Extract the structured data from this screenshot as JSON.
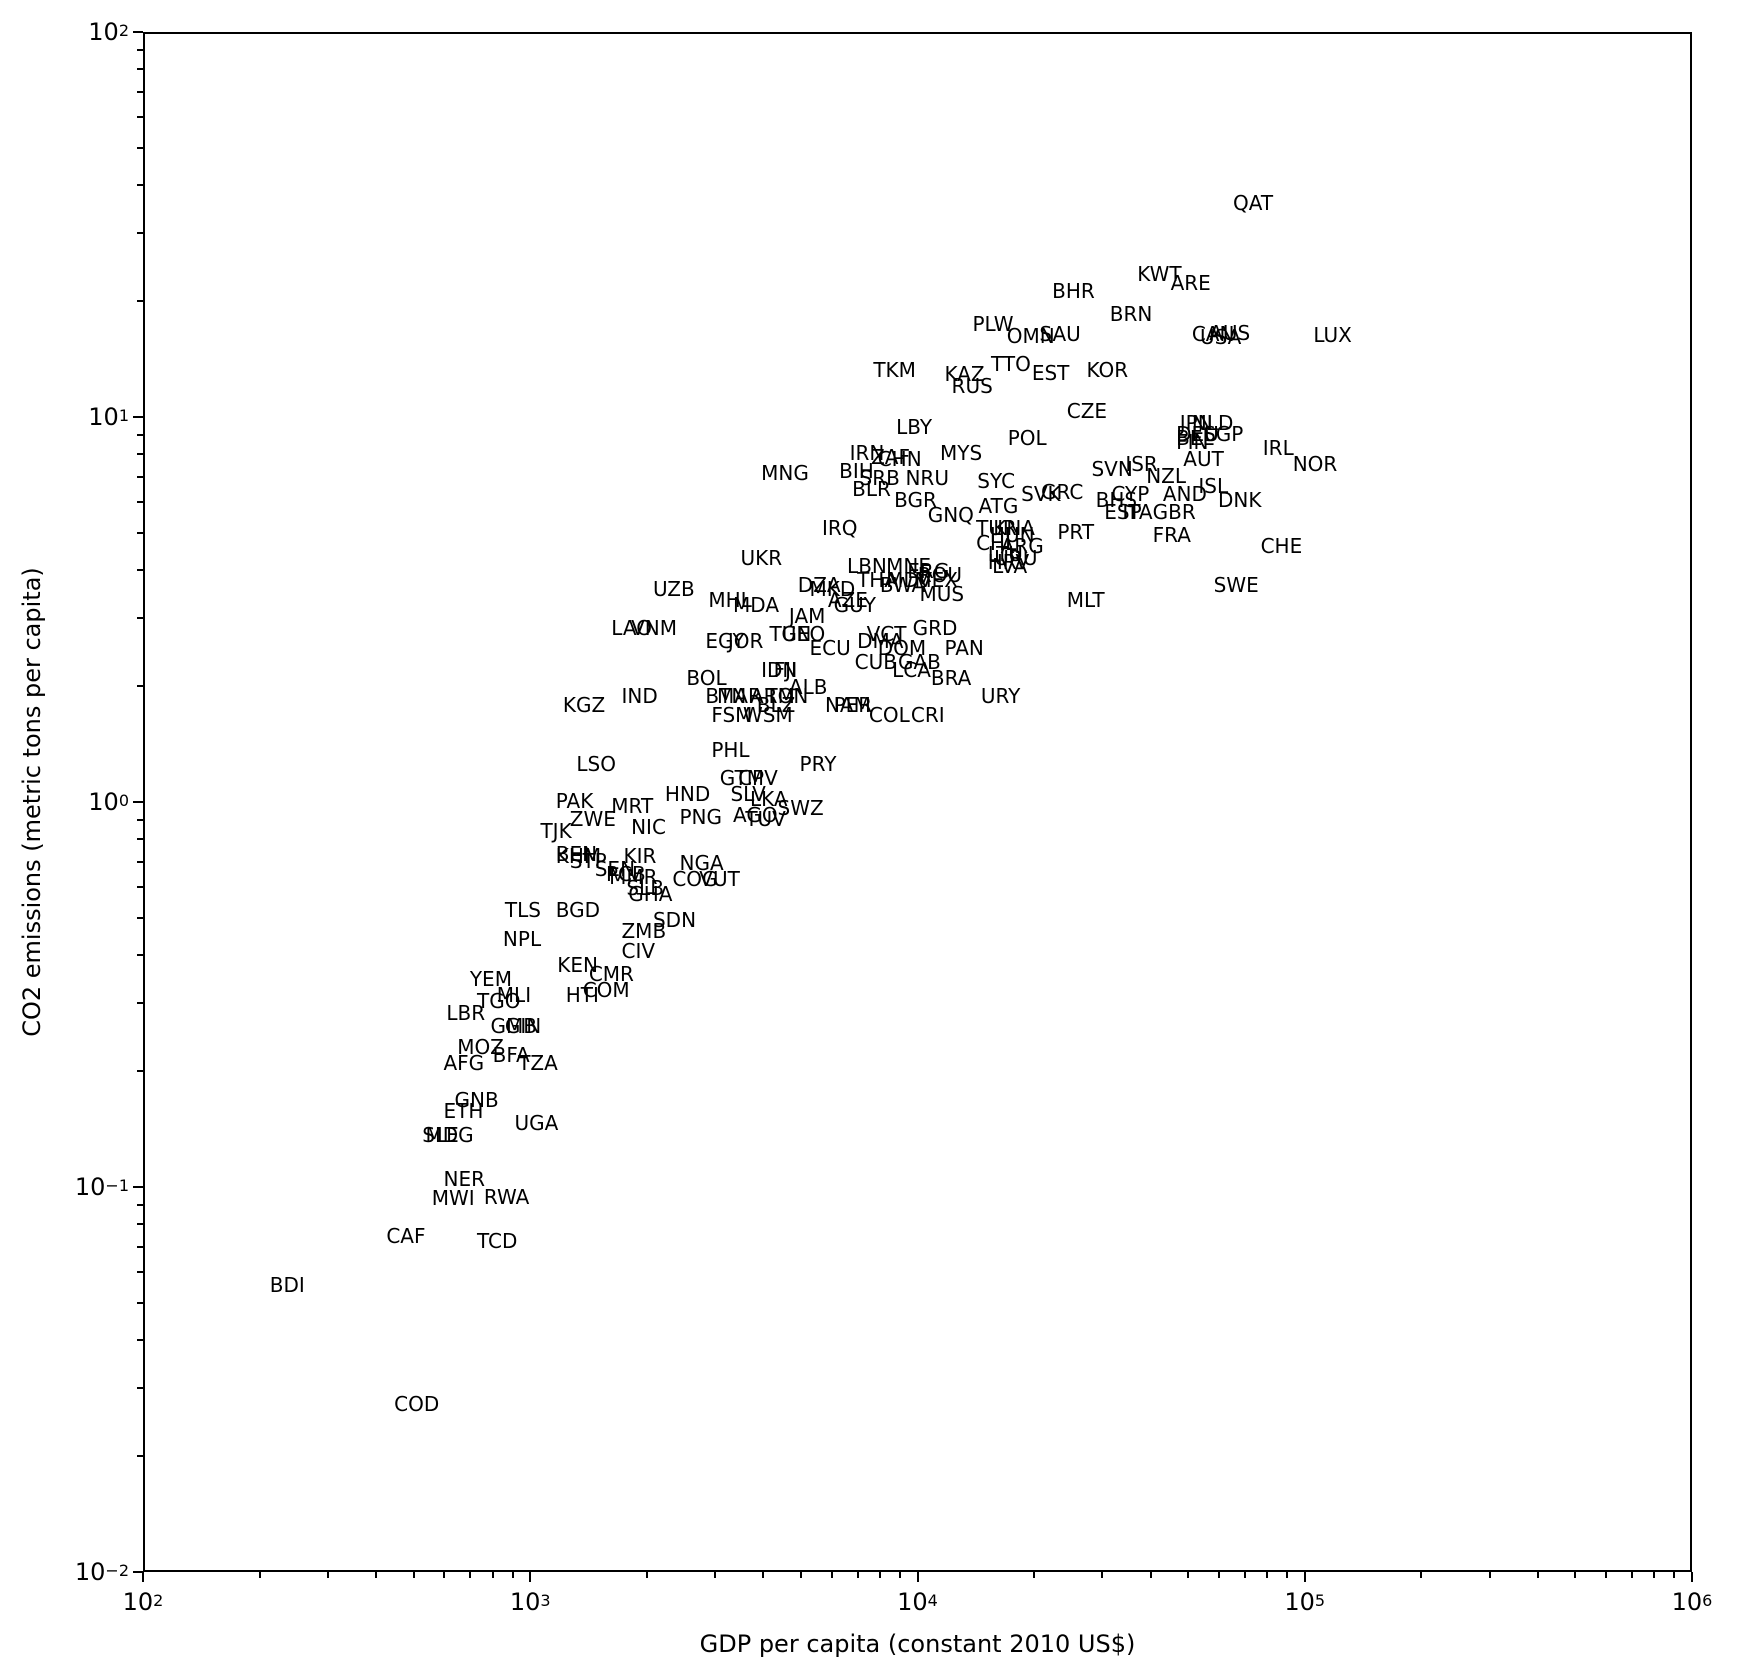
{
  "chart_data": {
    "type": "scatter",
    "title": "",
    "xlabel": "GDP per capita (constant 2010 US$)",
    "ylabel": "CO2 emissions (metric tons per capita)",
    "xscale": "log",
    "yscale": "log",
    "xlim": [
      100,
      1000000
    ],
    "ylim": [
      0.01,
      100
    ],
    "x_ticks": [
      {
        "base": "10",
        "exp": "2"
      },
      {
        "base": "10",
        "exp": "3"
      },
      {
        "base": "10",
        "exp": "4"
      },
      {
        "base": "10",
        "exp": "5"
      },
      {
        "base": "10",
        "exp": "6"
      }
    ],
    "y_ticks": [
      {
        "base": "10",
        "exp": "−2"
      },
      {
        "base": "10",
        "exp": "−1"
      },
      {
        "base": "10",
        "exp": "0"
      },
      {
        "base": "10",
        "exp": "1"
      },
      {
        "base": "10",
        "exp": "2"
      }
    ],
    "grid": false,
    "legend": null,
    "marker": "text labels (ISO3 country codes)",
    "points": [
      {
        "label": "QAT",
        "x": 64500,
        "y": 34.2
      },
      {
        "label": "KWT",
        "x": 36500,
        "y": 22.4
      },
      {
        "label": "ARE",
        "x": 44500,
        "y": 21.2
      },
      {
        "label": "BHR",
        "x": 22000,
        "y": 20.3
      },
      {
        "label": "BRN",
        "x": 31000,
        "y": 17.7
      },
      {
        "label": "PLW",
        "x": 13700,
        "y": 16.6
      },
      {
        "label": "OMN",
        "x": 16800,
        "y": 15.5
      },
      {
        "label": "SAU",
        "x": 20400,
        "y": 15.7
      },
      {
        "label": "CAN",
        "x": 50500,
        "y": 15.7
      },
      {
        "label": "AUS",
        "x": 56000,
        "y": 15.8
      },
      {
        "label": "USA",
        "x": 53000,
        "y": 15.4
      },
      {
        "label": "LUX",
        "x": 104000,
        "y": 15.6
      },
      {
        "label": "TKM",
        "x": 7600,
        "y": 12.6
      },
      {
        "label": "KAZ",
        "x": 11600,
        "y": 12.3
      },
      {
        "label": "RUS",
        "x": 12100,
        "y": 11.5
      },
      {
        "label": "TTO",
        "x": 15300,
        "y": 13.1
      },
      {
        "label": "EST",
        "x": 19500,
        "y": 12.4
      },
      {
        "label": "KOR",
        "x": 27000,
        "y": 12.6
      },
      {
        "label": "CZE",
        "x": 24000,
        "y": 9.9
      },
      {
        "label": "LBY",
        "x": 8700,
        "y": 9.0
      },
      {
        "label": "POL",
        "x": 16900,
        "y": 8.4
      },
      {
        "label": "IRN",
        "x": 6600,
        "y": 7.7
      },
      {
        "label": "ZAF",
        "x": 7500,
        "y": 7.5
      },
      {
        "label": "CHN",
        "x": 7800,
        "y": 7.4
      },
      {
        "label": "MYS",
        "x": 11300,
        "y": 7.7
      },
      {
        "label": "MNG",
        "x": 3900,
        "y": 6.8
      },
      {
        "label": "BIH",
        "x": 6200,
        "y": 6.9
      },
      {
        "label": "SRB",
        "x": 7000,
        "y": 6.6
      },
      {
        "label": "BLR",
        "x": 6700,
        "y": 6.2
      },
      {
        "label": "NRU",
        "x": 9200,
        "y": 6.6
      },
      {
        "label": "BGR",
        "x": 8600,
        "y": 5.8
      },
      {
        "label": "SYC",
        "x": 14100,
        "y": 6.5
      },
      {
        "label": "SVK",
        "x": 18300,
        "y": 6.0
      },
      {
        "label": "GRC",
        "x": 20600,
        "y": 6.1
      },
      {
        "label": "SVN",
        "x": 27800,
        "y": 7.0
      },
      {
        "label": "ISR",
        "x": 34000,
        "y": 7.2
      },
      {
        "label": "NZL",
        "x": 38500,
        "y": 6.7
      },
      {
        "label": "CYP",
        "x": 31300,
        "y": 6.0
      },
      {
        "label": "BHS",
        "x": 28500,
        "y": 5.8
      },
      {
        "label": "ESP",
        "x": 30000,
        "y": 5.4
      },
      {
        "label": "ITA",
        "x": 33400,
        "y": 5.4
      },
      {
        "label": "GBR",
        "x": 40000,
        "y": 5.4
      },
      {
        "label": "JPN",
        "x": 47000,
        "y": 9.2
      },
      {
        "label": "NLD",
        "x": 50500,
        "y": 9.2
      },
      {
        "label": "DEU",
        "x": 46000,
        "y": 8.6
      },
      {
        "label": "BEL",
        "x": 46000,
        "y": 8.4
      },
      {
        "label": "FIN",
        "x": 46000,
        "y": 8.2
      },
      {
        "label": "SGP",
        "x": 54000,
        "y": 8.6
      },
      {
        "label": "IRL",
        "x": 77000,
        "y": 7.9
      },
      {
        "label": "AUT",
        "x": 48000,
        "y": 7.4
      },
      {
        "label": "NOR",
        "x": 92000,
        "y": 7.2
      },
      {
        "label": "ISL",
        "x": 52500,
        "y": 6.3
      },
      {
        "label": "AND",
        "x": 42500,
        "y": 6.0
      },
      {
        "label": "DNK",
        "x": 59000,
        "y": 5.8
      },
      {
        "label": "FRA",
        "x": 40000,
        "y": 4.7
      },
      {
        "label": "CHE",
        "x": 76000,
        "y": 4.4
      },
      {
        "label": "SWE",
        "x": 57500,
        "y": 3.5
      },
      {
        "label": "MLT",
        "x": 24000,
        "y": 3.2
      },
      {
        "label": "PRT",
        "x": 22700,
        "y": 4.8
      },
      {
        "label": "ATG",
        "x": 14200,
        "y": 5.6
      },
      {
        "label": "TUR",
        "x": 14000,
        "y": 4.9
      },
      {
        "label": "KNA",
        "x": 15500,
        "y": 4.9
      },
      {
        "label": "HUN",
        "x": 15200,
        "y": 4.7
      },
      {
        "label": "CHL",
        "x": 14000,
        "y": 4.5
      },
      {
        "label": "ARG",
        "x": 16200,
        "y": 4.4
      },
      {
        "label": "LTU",
        "x": 15000,
        "y": 4.2
      },
      {
        "label": "HRV",
        "x": 15000,
        "y": 4.0
      },
      {
        "label": "URU",
        "x": 15600,
        "y": 4.1
      },
      {
        "label": "LVA",
        "x": 15400,
        "y": 3.9
      },
      {
        "label": "GNQ",
        "x": 10500,
        "y": 5.3
      },
      {
        "label": "IRQ",
        "x": 5600,
        "y": 4.9
      },
      {
        "label": "UKR",
        "x": 3450,
        "y": 4.1
      },
      {
        "label": "UZB",
        "x": 2050,
        "y": 3.4
      },
      {
        "label": "MHL",
        "x": 2850,
        "y": 3.2
      },
      {
        "label": "MDA",
        "x": 3300,
        "y": 3.1
      },
      {
        "label": "LBN",
        "x": 6500,
        "y": 3.9
      },
      {
        "label": "MNE",
        "x": 8200,
        "y": 3.9
      },
      {
        "label": "ERG",
        "x": 9300,
        "y": 3.8
      },
      {
        "label": "ROU",
        "x": 9900,
        "y": 3.7
      },
      {
        "label": "MEX",
        "x": 9700,
        "y": 3.6
      },
      {
        "label": "THA",
        "x": 6900,
        "y": 3.6
      },
      {
        "label": "MDV",
        "x": 8200,
        "y": 3.6
      },
      {
        "label": "BWA",
        "x": 7900,
        "y": 3.5
      },
      {
        "label": "DZA",
        "x": 4850,
        "y": 3.5
      },
      {
        "label": "MKD",
        "x": 5200,
        "y": 3.4
      },
      {
        "label": "AZE",
        "x": 5800,
        "y": 3.2
      },
      {
        "label": "GUY",
        "x": 6000,
        "y": 3.1
      },
      {
        "label": "MUS",
        "x": 10000,
        "y": 3.3
      },
      {
        "label": "JAM",
        "x": 4600,
        "y": 2.9
      },
      {
        "label": "LAO",
        "x": 1600,
        "y": 2.7
      },
      {
        "label": "VNM",
        "x": 1800,
        "y": 2.7
      },
      {
        "label": "EGY",
        "x": 2800,
        "y": 2.5
      },
      {
        "label": "JOR",
        "x": 3200,
        "y": 2.5
      },
      {
        "label": "TUN",
        "x": 4100,
        "y": 2.6
      },
      {
        "label": "GEO",
        "x": 4400,
        "y": 2.6
      },
      {
        "label": "ECU",
        "x": 5200,
        "y": 2.4
      },
      {
        "label": "DMA",
        "x": 6900,
        "y": 2.5
      },
      {
        "label": "VCT",
        "x": 7300,
        "y": 2.6
      },
      {
        "label": "DOM",
        "x": 7800,
        "y": 2.4
      },
      {
        "label": "GRD",
        "x": 9600,
        "y": 2.7
      },
      {
        "label": "PAN",
        "x": 11600,
        "y": 2.4
      },
      {
        "label": "CUB",
        "x": 6800,
        "y": 2.2
      },
      {
        "label": "GAB",
        "x": 8800,
        "y": 2.2
      },
      {
        "label": "LCA",
        "x": 8500,
        "y": 2.1
      },
      {
        "label": "BRA",
        "x": 10700,
        "y": 2.0
      },
      {
        "label": "URY",
        "x": 14400,
        "y": 1.8
      },
      {
        "label": "IDN",
        "x": 3900,
        "y": 2.1
      },
      {
        "label": "FJI",
        "x": 4200,
        "y": 2.1
      },
      {
        "label": "ALB",
        "x": 4600,
        "y": 1.9
      },
      {
        "label": "BOL",
        "x": 2500,
        "y": 2.0
      },
      {
        "label": "IND",
        "x": 1700,
        "y": 1.8
      },
      {
        "label": "KGZ",
        "x": 1200,
        "y": 1.7
      },
      {
        "label": "BTN",
        "x": 2800,
        "y": 1.8
      },
      {
        "label": "MAR",
        "x": 3000,
        "y": 1.8
      },
      {
        "label": "ARM",
        "x": 3650,
        "y": 1.8
      },
      {
        "label": "TON",
        "x": 4000,
        "y": 1.8
      },
      {
        "label": "BLZ",
        "x": 3800,
        "y": 1.7
      },
      {
        "label": "WSM",
        "x": 3500,
        "y": 1.6
      },
      {
        "label": "NAM",
        "x": 5700,
        "y": 1.7
      },
      {
        "label": "PER",
        "x": 6000,
        "y": 1.7
      },
      {
        "label": "COL",
        "x": 7400,
        "y": 1.6
      },
      {
        "label": "CRI",
        "x": 9500,
        "y": 1.6
      },
      {
        "label": "FSM",
        "x": 2900,
        "y": 1.6
      },
      {
        "label": "PHL",
        "x": 2900,
        "y": 1.3
      },
      {
        "label": "PRY",
        "x": 4900,
        "y": 1.2
      },
      {
        "label": "LSO",
        "x": 1300,
        "y": 1.2
      },
      {
        "label": "GTM",
        "x": 3050,
        "y": 1.1
      },
      {
        "label": "CPV",
        "x": 3400,
        "y": 1.1
      },
      {
        "label": "SLV",
        "x": 3250,
        "y": 1.0
      },
      {
        "label": "LKA",
        "x": 3650,
        "y": 0.97
      },
      {
        "label": "SWZ",
        "x": 4300,
        "y": 0.92
      },
      {
        "label": "HND",
        "x": 2200,
        "y": 1.0
      },
      {
        "label": "PAK",
        "x": 1150,
        "y": 0.96
      },
      {
        "label": "MRT",
        "x": 1600,
        "y": 0.93
      },
      {
        "label": "PNG",
        "x": 2400,
        "y": 0.87
      },
      {
        "label": "AGO",
        "x": 3300,
        "y": 0.88
      },
      {
        "label": "TUV",
        "x": 3550,
        "y": 0.86
      },
      {
        "label": "ZWE",
        "x": 1250,
        "y": 0.86
      },
      {
        "label": "NIC",
        "x": 1800,
        "y": 0.82
      },
      {
        "label": "TJK",
        "x": 1050,
        "y": 0.8
      },
      {
        "label": "BEN",
        "x": 1150,
        "y": 0.7
      },
      {
        "label": "KHM",
        "x": 1150,
        "y": 0.69
      },
      {
        "label": "STP",
        "x": 1250,
        "y": 0.67
      },
      {
        "label": "KIR",
        "x": 1720,
        "y": 0.69
      },
      {
        "label": "SEN",
        "x": 1450,
        "y": 0.64
      },
      {
        "label": "MMR",
        "x": 1580,
        "y": 0.61
      },
      {
        "label": "PCB",
        "x": 1550,
        "y": 0.62
      },
      {
        "label": "NGA",
        "x": 2400,
        "y": 0.66
      },
      {
        "label": "COG",
        "x": 2300,
        "y": 0.6
      },
      {
        "label": "VUT",
        "x": 2700,
        "y": 0.6
      },
      {
        "label": "SLB",
        "x": 1750,
        "y": 0.57
      },
      {
        "label": "GHA",
        "x": 1770,
        "y": 0.55
      },
      {
        "label": "TLS",
        "x": 850,
        "y": 0.5
      },
      {
        "label": "BGD",
        "x": 1150,
        "y": 0.5
      },
      {
        "label": "SDN",
        "x": 2050,
        "y": 0.47
      },
      {
        "label": "ZMB",
        "x": 1700,
        "y": 0.44
      },
      {
        "label": "NPL",
        "x": 840,
        "y": 0.42
      },
      {
        "label": "CIV",
        "x": 1700,
        "y": 0.39
      },
      {
        "label": "KEN",
        "x": 1160,
        "y": 0.36
      },
      {
        "label": "CMR",
        "x": 1400,
        "y": 0.34
      },
      {
        "label": "COM",
        "x": 1350,
        "y": 0.31
      },
      {
        "label": "HTI",
        "x": 1220,
        "y": 0.3
      },
      {
        "label": "YEM",
        "x": 690,
        "y": 0.33
      },
      {
        "label": "MLI",
        "x": 810,
        "y": 0.3
      },
      {
        "label": "TGO",
        "x": 720,
        "y": 0.29
      },
      {
        "label": "LBR",
        "x": 600,
        "y": 0.27
      },
      {
        "label": "GMB",
        "x": 780,
        "y": 0.25
      },
      {
        "label": "GIN",
        "x": 850,
        "y": 0.25
      },
      {
        "label": "MOZ",
        "x": 640,
        "y": 0.22
      },
      {
        "label": "BFA",
        "x": 790,
        "y": 0.21
      },
      {
        "label": "TZA",
        "x": 920,
        "y": 0.2
      },
      {
        "label": "AFG",
        "x": 590,
        "y": 0.2
      },
      {
        "label": "GNB",
        "x": 630,
        "y": 0.16
      },
      {
        "label": "ETH",
        "x": 590,
        "y": 0.15
      },
      {
        "label": "UGA",
        "x": 900,
        "y": 0.14
      },
      {
        "label": "SLE",
        "x": 520,
        "y": 0.13
      },
      {
        "label": "MDG",
        "x": 530,
        "y": 0.13
      },
      {
        "label": "NER",
        "x": 590,
        "y": 0.1
      },
      {
        "label": "MWI",
        "x": 550,
        "y": 0.089
      },
      {
        "label": "RWA",
        "x": 750,
        "y": 0.09
      },
      {
        "label": "CAF",
        "x": 420,
        "y": 0.071
      },
      {
        "label": "TCD",
        "x": 720,
        "y": 0.069
      },
      {
        "label": "BDI",
        "x": 210,
        "y": 0.053
      },
      {
        "label": "COD",
        "x": 440,
        "y": 0.026
      }
    ]
  }
}
